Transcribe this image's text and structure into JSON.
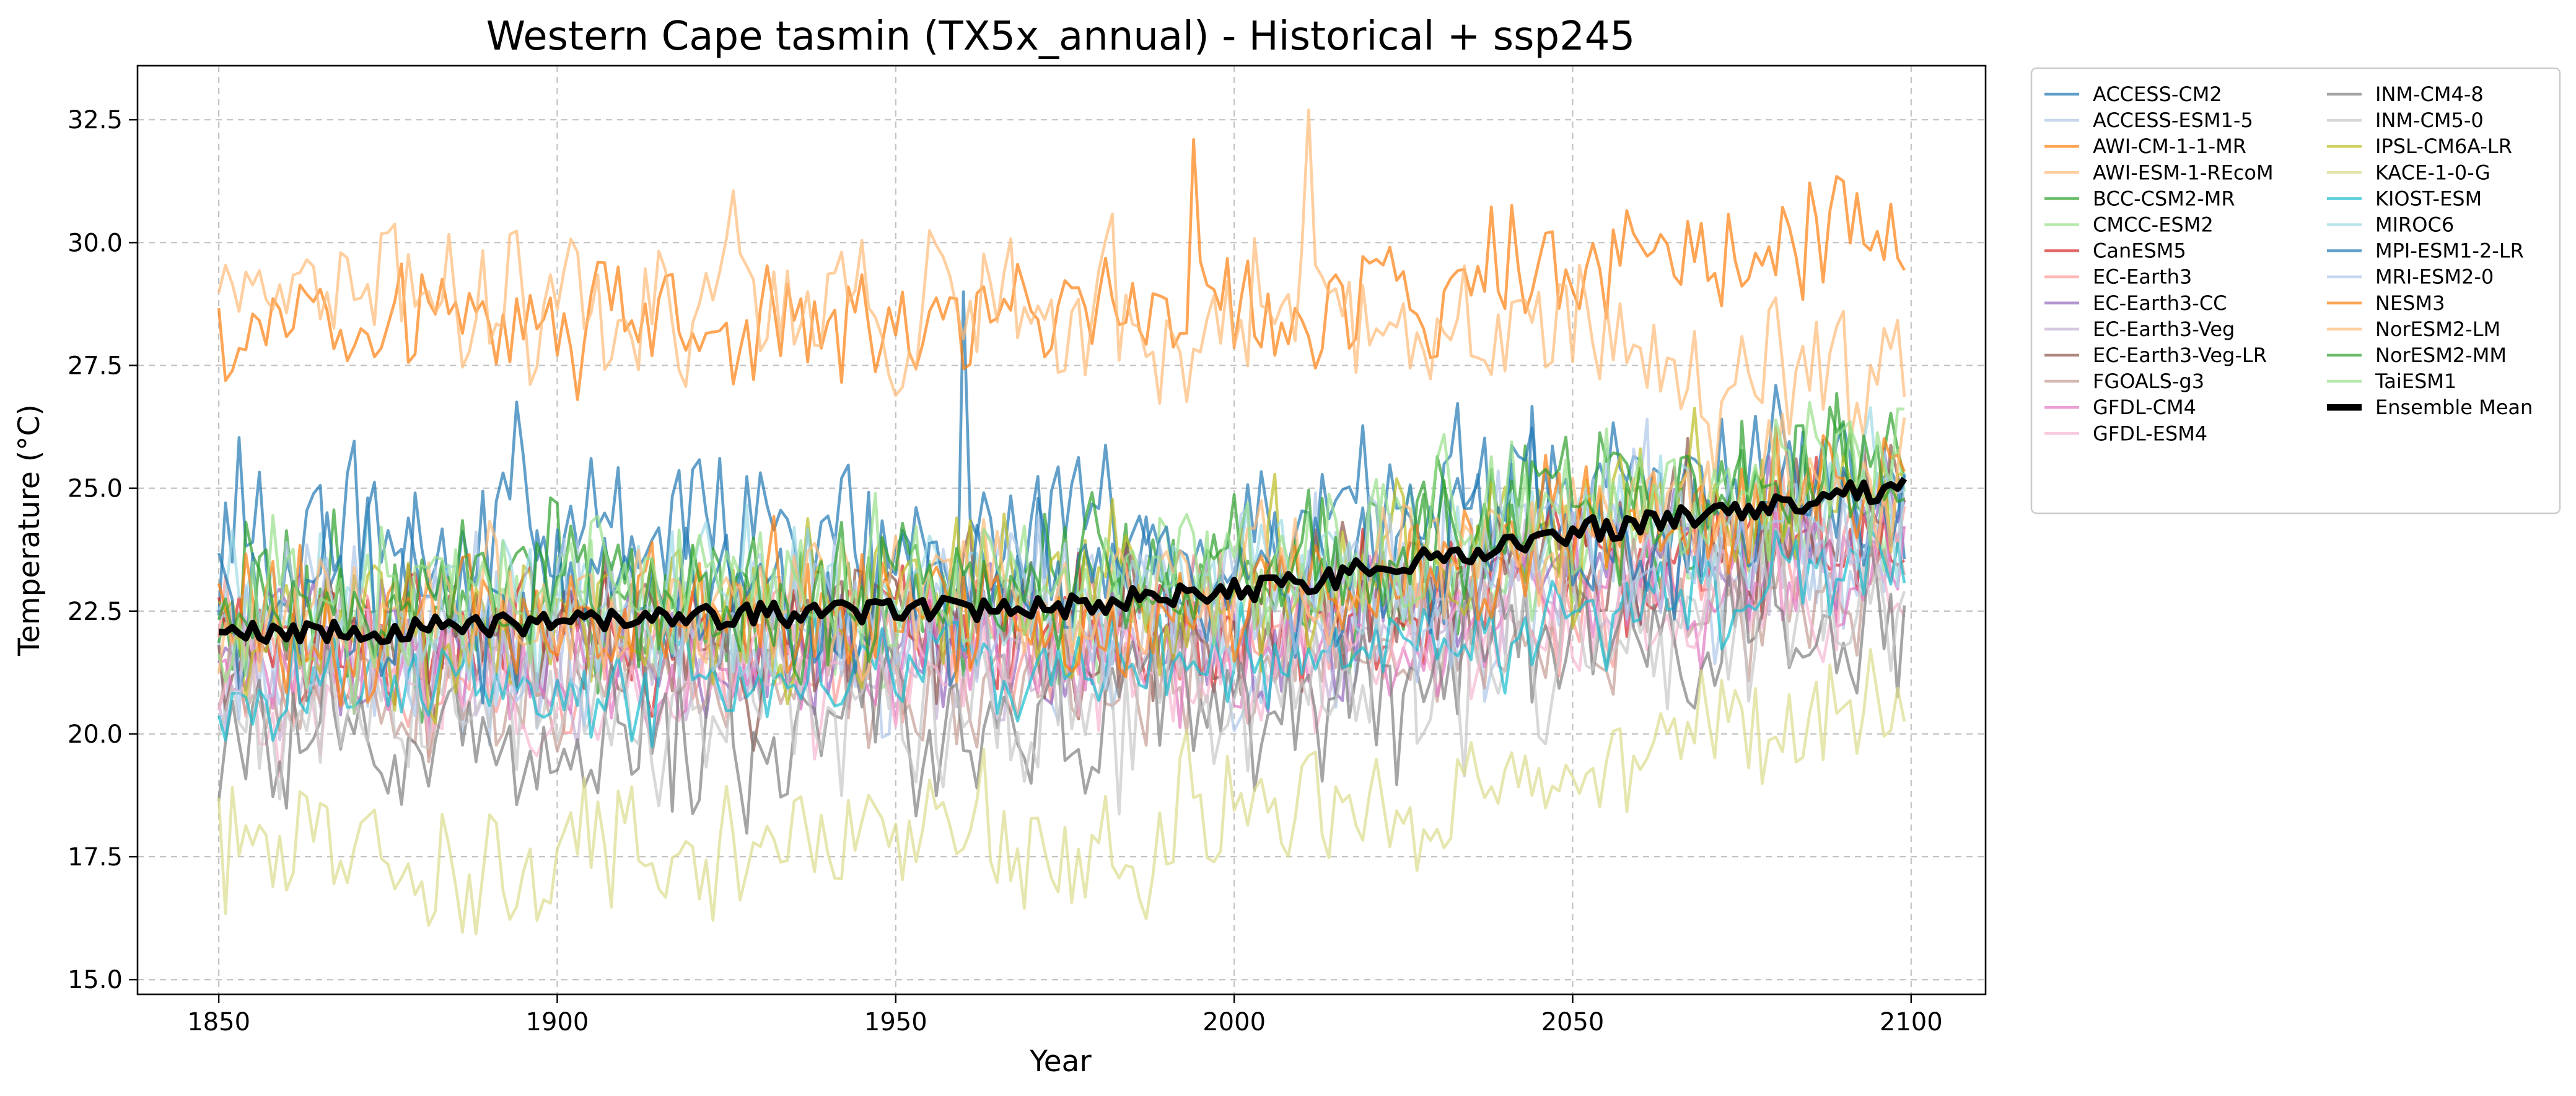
{
  "chart_data": {
    "type": "line",
    "title": "Western Cape tasmin (TX5x_annual) - Historical + ssp245",
    "xlabel": "Year",
    "ylabel": "Temperature (°C)",
    "xlim": [
      1838,
      2111
    ],
    "ylim": [
      14.7,
      33.6
    ],
    "xticks": [
      1850,
      1900,
      1950,
      2000,
      2050,
      2100
    ],
    "xtick_labels": [
      "1850",
      "1900",
      "1950",
      "2000",
      "2050",
      "2100"
    ],
    "yticks": [
      15.0,
      17.5,
      20.0,
      22.5,
      25.0,
      27.5,
      30.0,
      32.5
    ],
    "ytick_labels": [
      "15.0",
      "17.5",
      "20.0",
      "22.5",
      "25.0",
      "27.5",
      "30.0",
      "32.5"
    ],
    "grid": true,
    "legend_position": "outside-right",
    "years": [
      1850,
      2099
    ],
    "series": [
      {
        "name": "ACCESS-CM2",
        "color": "#1f77b4",
        "start": 24.0,
        "end": 25.2,
        "spread": 1.3,
        "peak": 29.0
      },
      {
        "name": "ACCESS-ESM1-5",
        "color": "#aec7e8",
        "start": 21.8,
        "end": 24.3,
        "spread": 1.4
      },
      {
        "name": "AWI-CM-1-1-MR",
        "color": "#ff7f0e",
        "start": 28.2,
        "end": 30.2,
        "spread": 0.9,
        "peak": 32.1
      },
      {
        "name": "AWI-ESM-1-REcoM",
        "color": "#ffbb78",
        "start": 29.0,
        "end": 27.0,
        "spread": 1.1,
        "peak": 32.7
      },
      {
        "name": "BCC-CSM2-MR",
        "color": "#2ca02c",
        "start": 22.3,
        "end": 25.0,
        "spread": 1.2
      },
      {
        "name": "CMCC-ESM2",
        "color": "#98df8a",
        "start": 22.0,
        "end": 25.0,
        "spread": 1.1
      },
      {
        "name": "CanESM5",
        "color": "#d62728",
        "start": 21.6,
        "end": 24.2,
        "spread": 1.0
      },
      {
        "name": "EC-Earth3",
        "color": "#ff9896",
        "start": 21.4,
        "end": 24.0,
        "spread": 1.0
      },
      {
        "name": "EC-Earth3-CC",
        "color": "#9467bd",
        "start": 21.5,
        "end": 24.3,
        "spread": 1.0
      },
      {
        "name": "EC-Earth3-Veg",
        "color": "#c5b0d5",
        "start": 21.3,
        "end": 24.0,
        "spread": 1.0
      },
      {
        "name": "EC-Earth3-Veg-LR",
        "color": "#8c564b",
        "start": 21.7,
        "end": 24.6,
        "spread": 1.1
      },
      {
        "name": "FGOALS-g3",
        "color": "#c49c94",
        "start": 21.0,
        "end": 23.4,
        "spread": 1.0
      },
      {
        "name": "GFDL-CM4",
        "color": "#e377c2",
        "start": 21.2,
        "end": 23.6,
        "spread": 0.9
      },
      {
        "name": "GFDL-ESM4",
        "color": "#f7b6d2",
        "start": 20.8,
        "end": 23.2,
        "spread": 0.9
      },
      {
        "name": "INM-CM4-8",
        "color": "#7f7f7f",
        "start": 19.8,
        "end": 22.6,
        "spread": 1.2
      },
      {
        "name": "INM-CM5-0",
        "color": "#c7c7c7",
        "start": 20.2,
        "end": 22.8,
        "spread": 1.2
      },
      {
        "name": "IPSL-CM6A-LR",
        "color": "#bcbd22",
        "start": 22.0,
        "end": 25.4,
        "spread": 1.2
      },
      {
        "name": "KACE-1-0-G",
        "color": "#dbdb8d",
        "start": 17.2,
        "end": 20.5,
        "spread": 1.1
      },
      {
        "name": "KIOST-ESM",
        "color": "#17becf",
        "start": 20.9,
        "end": 23.4,
        "spread": 0.8
      },
      {
        "name": "MIROC6",
        "color": "#9edae5",
        "start": 22.4,
        "end": 25.2,
        "spread": 1.1
      },
      {
        "name": "MPI-ESM1-2-LR",
        "color": "#1f77b4",
        "start": 22.6,
        "end": 25.0,
        "spread": 1.2
      },
      {
        "name": "MRI-ESM2-0",
        "color": "#aec7e8",
        "start": 22.0,
        "end": 24.8,
        "spread": 1.2
      },
      {
        "name": "NESM3",
        "color": "#ff7f0e",
        "start": 22.0,
        "end": 25.4,
        "spread": 1.0
      },
      {
        "name": "NorESM2-LM",
        "color": "#ffbb78",
        "start": 22.2,
        "end": 25.4,
        "spread": 1.0
      },
      {
        "name": "NorESM2-MM",
        "color": "#2ca02c",
        "start": 22.5,
        "end": 25.6,
        "spread": 1.0
      },
      {
        "name": "TaiESM1",
        "color": "#98df8a",
        "start": 22.5,
        "end": 25.8,
        "spread": 1.1
      }
    ],
    "ensemble_mean": {
      "name": "Ensemble Mean",
      "color": "#000000",
      "keypoints": [
        [
          1850,
          22.0
        ],
        [
          1875,
          22.1
        ],
        [
          1900,
          22.3
        ],
        [
          1925,
          22.4
        ],
        [
          1950,
          22.5
        ],
        [
          1975,
          22.6
        ],
        [
          2000,
          22.9
        ],
        [
          2015,
          23.2
        ],
        [
          2030,
          23.6
        ],
        [
          2050,
          24.1
        ],
        [
          2075,
          24.6
        ],
        [
          2099,
          25.0
        ]
      ]
    }
  }
}
